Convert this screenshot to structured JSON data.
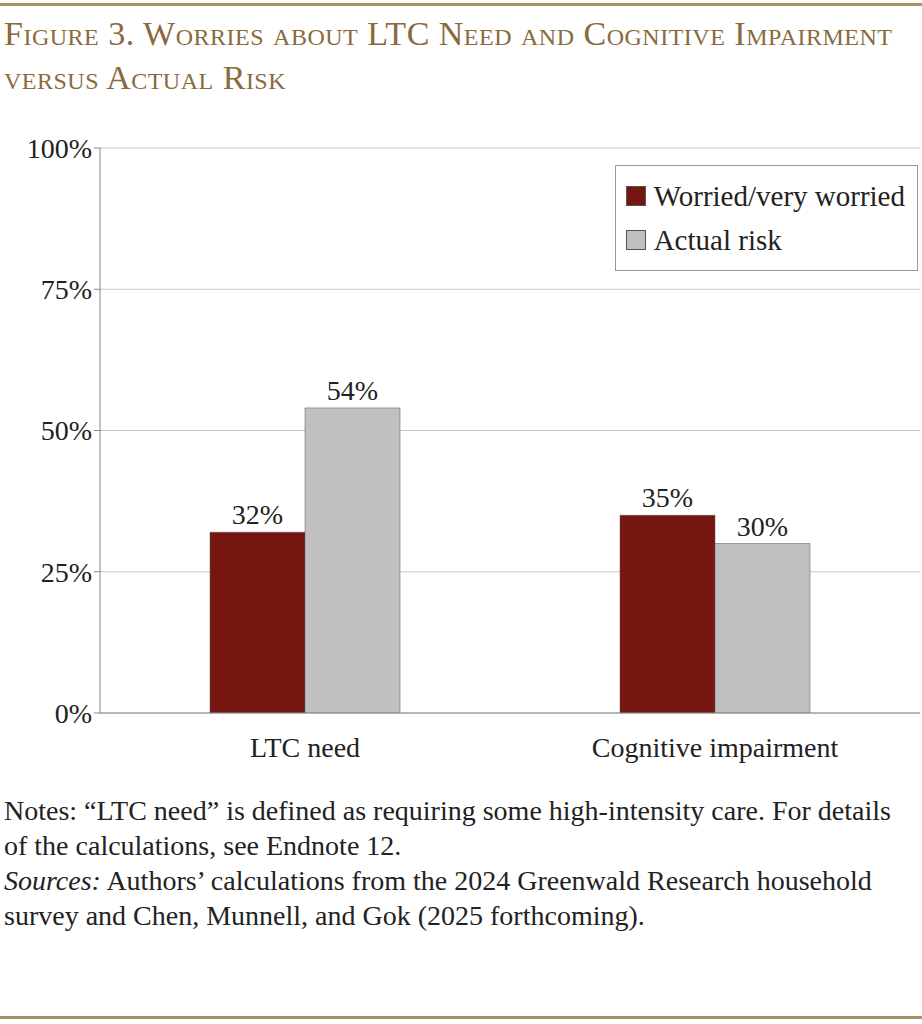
{
  "chart_data": {
    "type": "bar",
    "title": "Figure 3. Worries about LTC Need and Cognitive Impairment versus Actual Risk",
    "categories": [
      "LTC need",
      "Cognitive impairment"
    ],
    "series": [
      {
        "name": "Worried/very worried",
        "color": "#761611",
        "values": [
          32,
          35
        ],
        "value_labels": [
          "32%",
          "35%"
        ]
      },
      {
        "name": "Actual risk",
        "color": "#c0c0c0",
        "values": [
          54,
          30
        ],
        "value_labels": [
          "54%",
          "30%"
        ]
      }
    ],
    "ylim": [
      0,
      100
    ],
    "yticks": [
      {
        "value": 0,
        "label": "0%"
      },
      {
        "value": 25,
        "label": "25%"
      },
      {
        "value": 50,
        "label": "50%"
      },
      {
        "value": 75,
        "label": "75%"
      },
      {
        "value": 100,
        "label": "100%"
      }
    ],
    "grid": true,
    "legend": "upper right",
    "data_labels": true,
    "notes": "Notes: “LTC need” is defined as requiring some high-intensity care.  For details of the calculations, see Endnote 12.",
    "source": "Sources: Authors’ calculations from the 2024 Greenwald Research household survey and Chen, Munnell, and Gok (2025 forthcoming)."
  }
}
